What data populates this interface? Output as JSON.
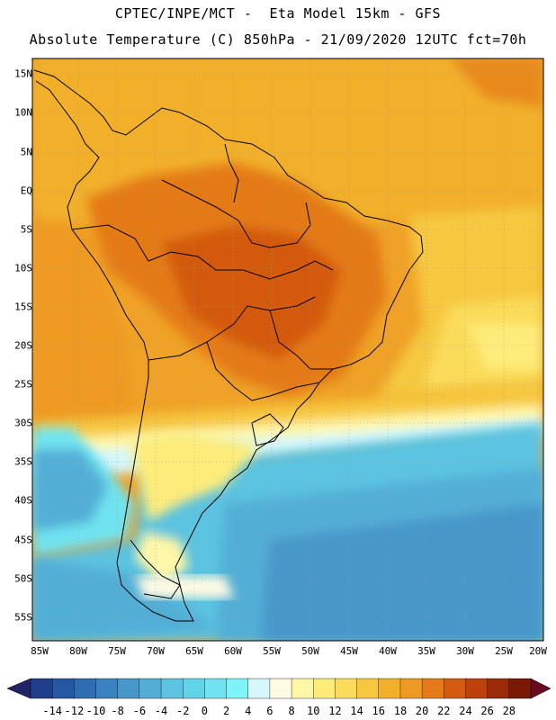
{
  "header": {
    "line1": "CPTEC/INPE/MCT -  Eta Model 15km - GFS",
    "line2": "Absolute Temperature (C) 850hPa - 21/09/2020 12UTC fct=70h"
  },
  "axes": {
    "lat_labels": [
      "15N",
      "10N",
      "5N",
      "EQ",
      "5S",
      "10S",
      "15S",
      "20S",
      "25S",
      "30S",
      "35S",
      "40S",
      "45S",
      "50S",
      "55S"
    ],
    "lon_labels": [
      "85W",
      "80W",
      "75W",
      "70W",
      "65W",
      "60W",
      "55W",
      "50W",
      "45W",
      "40W",
      "35W",
      "30W",
      "25W",
      "20W"
    ]
  },
  "colorbar": {
    "labels": [
      "-14",
      "-12",
      "-10",
      "-8",
      "-6",
      "-4",
      "-2",
      "0",
      "2",
      "4",
      "6",
      "8",
      "10",
      "12",
      "14",
      "16",
      "18",
      "20",
      "22",
      "24",
      "26",
      "28"
    ],
    "colors": [
      "#1f3f8c",
      "#2657a3",
      "#2e6db2",
      "#3a83c0",
      "#4797c9",
      "#53aed6",
      "#5cc3e0",
      "#61d4ea",
      "#6fe3f0",
      "#7cf4f8",
      "#d6f7fb",
      "#fffbe3",
      "#fff7a8",
      "#fdec7a",
      "#fbdc5a",
      "#f6c83f",
      "#f2b02a",
      "#ee9a22",
      "#e47a18",
      "#d35a10",
      "#bb400b",
      "#9a2a08",
      "#7a1a05"
    ],
    "low_arrow_color": "#222266",
    "high_arrow_color": "#6a0a1e"
  }
}
